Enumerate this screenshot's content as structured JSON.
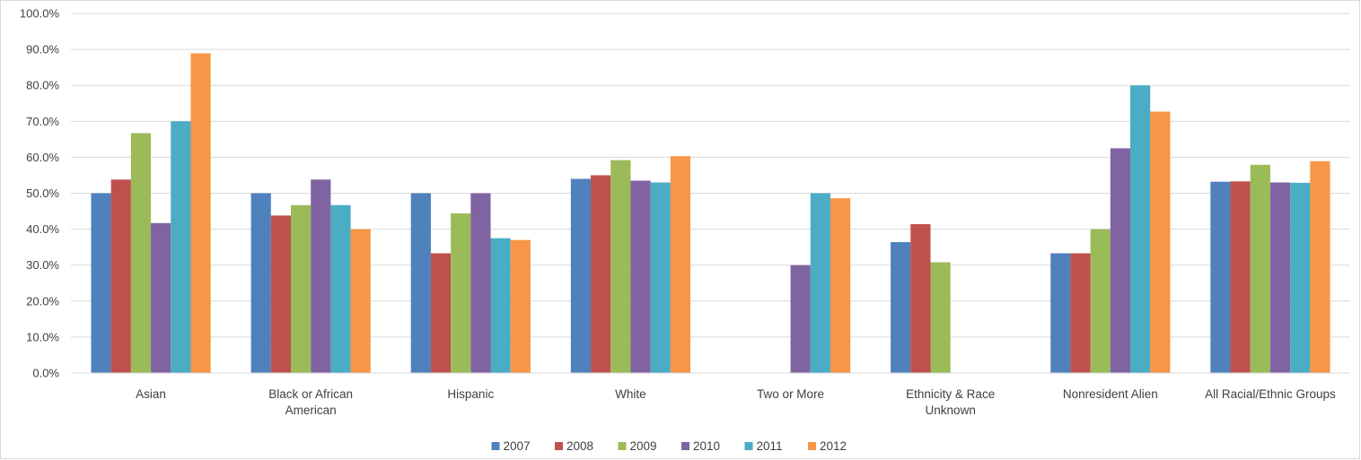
{
  "chart_data": {
    "type": "bar",
    "categories": [
      [
        "Asian"
      ],
      [
        "Black or African",
        "American"
      ],
      [
        "Hispanic"
      ],
      [
        "White"
      ],
      [
        "Two or More"
      ],
      [
        "Ethnicity & Race",
        "Unknown"
      ],
      [
        "Nonresident Alien"
      ],
      [
        "All Racial/Ethnic Groups"
      ]
    ],
    "series": [
      {
        "name": "2007",
        "color": "#4f81bd",
        "values": [
          50.0,
          50.0,
          50.0,
          54.0,
          null,
          36.4,
          33.3,
          53.2
        ]
      },
      {
        "name": "2008",
        "color": "#c0504d",
        "values": [
          53.8,
          43.8,
          33.3,
          55.0,
          null,
          41.4,
          33.3,
          53.3
        ]
      },
      {
        "name": "2009",
        "color": "#9bbb59",
        "values": [
          66.7,
          46.7,
          44.4,
          59.2,
          null,
          30.8,
          40.0,
          57.9
        ]
      },
      {
        "name": "2010",
        "color": "#8064a2",
        "values": [
          41.7,
          53.8,
          50.0,
          53.5,
          30.0,
          null,
          62.5,
          53.0
        ]
      },
      {
        "name": "2011",
        "color": "#4bacc6",
        "values": [
          70.0,
          46.7,
          37.5,
          53.0,
          50.0,
          null,
          80.0,
          52.9
        ]
      },
      {
        "name": "2012",
        "color": "#f79646",
        "values": [
          88.9,
          40.0,
          37.0,
          60.3,
          48.6,
          null,
          72.7,
          58.9
        ]
      }
    ],
    "y_ticks": [
      "0.0%",
      "10.0%",
      "20.0%",
      "30.0%",
      "40.0%",
      "50.0%",
      "60.0%",
      "70.0%",
      "80.0%",
      "90.0%",
      "100.0%"
    ],
    "ylim": [
      0,
      100
    ],
    "grid": true,
    "legend_position": "bottom"
  }
}
